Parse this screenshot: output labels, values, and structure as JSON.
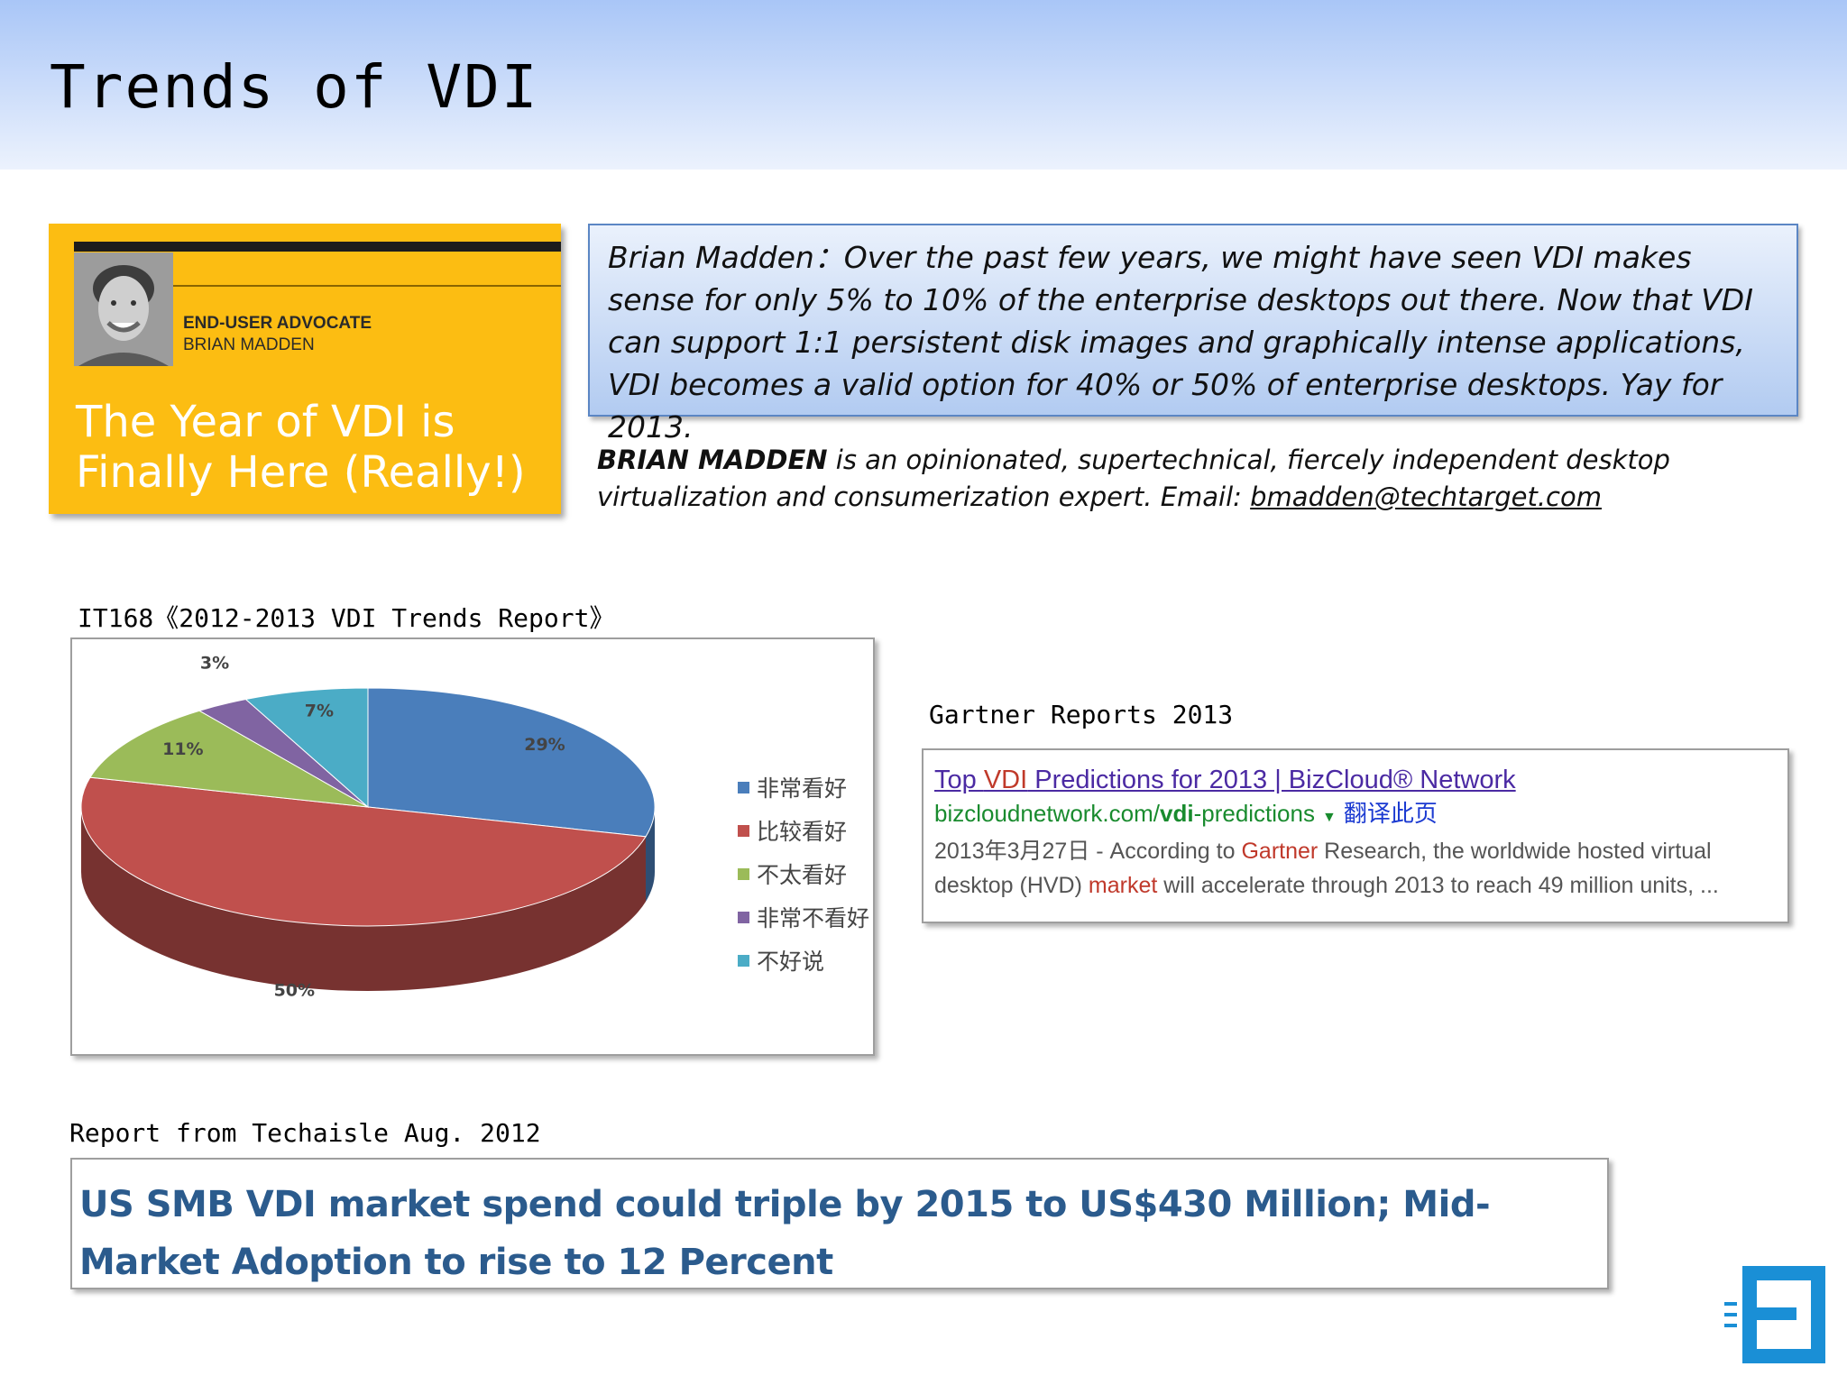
{
  "slide": {
    "title": "Trends of VDI"
  },
  "article_card": {
    "role": "END-USER ADVOCATE",
    "author": "BRIAN MADDEN",
    "headline": "The Year of VDI is Finally Here (Really!)"
  },
  "quote": {
    "text": "Brian Madden：Over the past few years, we might have seen VDI makes sense for only 5% to 10% of the enterprise desktops out there. Now that VDI can support 1:1 persistent disk images and graphically intense applications, VDI becomes a valid option for 40% or 50% of enterprise desktops. Yay for 2013."
  },
  "bio": {
    "name": "BRIAN MADDEN",
    "text": " is an opinionated, supertechnical, fiercely independent desktop virtualization and consumerization expert.  Email: ",
    "email": "bmadden@techtarget.com"
  },
  "it168": {
    "caption": "IT168《2012-2013 VDI Trends Report》"
  },
  "chart_data": {
    "type": "pie",
    "title": "",
    "categories": [
      "非常看好",
      "比较看好",
      "不太看好",
      "非常不看好",
      "不好说"
    ],
    "values": [
      29,
      50,
      11,
      3,
      7
    ],
    "labels": [
      "29%",
      "50%",
      "11%",
      "3%",
      "7%"
    ],
    "colors": [
      "#4a7ebb",
      "#c0504d",
      "#9bbb59",
      "#8064a2",
      "#4bacc6"
    ],
    "legend": "right",
    "style": "3d"
  },
  "gartner": {
    "caption": "Gartner Reports 2013",
    "link_pre": "Top ",
    "link_vdi": "VDI",
    "link_post": " Predictions for 2013 | BizCloud® Network",
    "url_pre": "bizcloudnetwork.com/",
    "url_vdi": "vdi",
    "url_post": "-predictions",
    "translate": "翻译此页",
    "snippet_1": "2013年3月27日 - According to ",
    "snippet_gartner": "Gartner",
    "snippet_2": " Research, the worldwide hosted virtual desktop (HVD) ",
    "snippet_market": "market",
    "snippet_3": " will accelerate through 2013 to reach 49 million units, ..."
  },
  "techaisle": {
    "caption": "Report from Techaisle Aug. 2012",
    "headline": "US SMB VDI market spend could triple by 2015 to US$430 Million; Mid-Market Adoption to rise to 12 Percent"
  }
}
